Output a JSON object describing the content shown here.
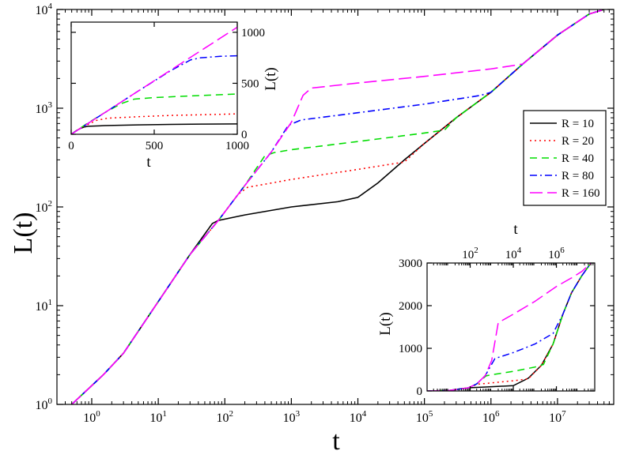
{
  "chart_data": [
    {
      "id": "main",
      "type": "line",
      "scale": {
        "x": "log",
        "y": "log"
      },
      "xlim": [
        0.3,
        70000000
      ],
      "ylim": [
        1,
        10000
      ],
      "xlabel": "t",
      "ylabel": "L(t)",
      "x_ticks": [
        1,
        10,
        100,
        1000,
        10000,
        100000,
        1000000,
        10000000
      ],
      "x_tick_labels": [
        {
          "base": "10",
          "exp": "0"
        },
        {
          "base": "10",
          "exp": "1"
        },
        {
          "base": "10",
          "exp": "2"
        },
        {
          "base": "10",
          "exp": "3"
        },
        {
          "base": "10",
          "exp": "4"
        },
        {
          "base": "10",
          "exp": "5"
        },
        {
          "base": "10",
          "exp": "6"
        },
        {
          "base": "10",
          "exp": "7"
        }
      ],
      "y_ticks": [
        1,
        10,
        100,
        1000,
        10000
      ],
      "y_tick_labels": [
        {
          "base": "10",
          "exp": "0"
        },
        {
          "base": "10",
          "exp": "1"
        },
        {
          "base": "10",
          "exp": "2"
        },
        {
          "base": "10",
          "exp": "3"
        },
        {
          "base": "10",
          "exp": "4"
        }
      ],
      "legend_position": "right",
      "series": [
        {
          "name": "R = 10",
          "color": "#000000",
          "dash": "solid",
          "points": [
            [
              0.5,
              1
            ],
            [
              1.5,
              2
            ],
            [
              3,
              3.3
            ],
            [
              10,
              11
            ],
            [
              30,
              33
            ],
            [
              65,
              68
            ],
            [
              80,
              73
            ],
            [
              200,
              83
            ],
            [
              1000,
              100
            ],
            [
              5000,
              113
            ],
            [
              10000,
              125
            ],
            [
              20000,
              175
            ],
            [
              50000,
              300
            ],
            [
              100000,
              440
            ],
            [
              300000,
              800
            ],
            [
              1000000,
              1450
            ],
            [
              3000000,
              2800
            ],
            [
              10000000,
              5500
            ],
            [
              30000000,
              9000
            ],
            [
              50000000,
              10000
            ]
          ]
        },
        {
          "name": "R = 20",
          "color": "#ff0000",
          "dash": "dotted",
          "points": [
            [
              0.5,
              1
            ],
            [
              1.5,
              2
            ],
            [
              3,
              3.3
            ],
            [
              10,
              11
            ],
            [
              30,
              33
            ],
            [
              80,
              73
            ],
            [
              160,
              135
            ],
            [
              220,
              158
            ],
            [
              1000,
              190
            ],
            [
              10000,
              240
            ],
            [
              50000,
              285
            ],
            [
              100000,
              440
            ],
            [
              300000,
              800
            ],
            [
              1000000,
              1450
            ],
            [
              3000000,
              2800
            ],
            [
              10000000,
              5500
            ],
            [
              30000000,
              9000
            ],
            [
              50000000,
              10000
            ]
          ]
        },
        {
          "name": "R = 40",
          "color": "#00dd00",
          "dash": "dashed",
          "points": [
            [
              0.5,
              1
            ],
            [
              1.5,
              2
            ],
            [
              3,
              3.3
            ],
            [
              10,
              11
            ],
            [
              30,
              33
            ],
            [
              80,
              73
            ],
            [
              200,
              165
            ],
            [
              400,
              330
            ],
            [
              550,
              355
            ],
            [
              1000,
              380
            ],
            [
              10000,
              460
            ],
            [
              100000,
              560
            ],
            [
              200000,
              600
            ],
            [
              300000,
              800
            ],
            [
              1000000,
              1450
            ],
            [
              3000000,
              2800
            ],
            [
              10000000,
              5500
            ],
            [
              30000000,
              9000
            ],
            [
              50000000,
              10000
            ]
          ]
        },
        {
          "name": "R = 80",
          "color": "#0000ff",
          "dash": "dashdot",
          "points": [
            [
              0.5,
              1
            ],
            [
              1.5,
              2
            ],
            [
              3,
              3.3
            ],
            [
              10,
              11
            ],
            [
              30,
              33
            ],
            [
              80,
              73
            ],
            [
              200,
              165
            ],
            [
              500,
              360
            ],
            [
              900,
              670
            ],
            [
              1400,
              760
            ],
            [
              10000,
              900
            ],
            [
              100000,
              1100
            ],
            [
              500000,
              1300
            ],
            [
              700000,
              1350
            ],
            [
              1000000,
              1450
            ],
            [
              3000000,
              2800
            ],
            [
              10000000,
              5500
            ],
            [
              30000000,
              9000
            ],
            [
              50000000,
              10000
            ]
          ]
        },
        {
          "name": "R = 160",
          "color": "#ff00ff",
          "dash": "longdash",
          "points": [
            [
              0.5,
              1
            ],
            [
              1.5,
              2
            ],
            [
              3,
              3.3
            ],
            [
              10,
              11
            ],
            [
              30,
              33
            ],
            [
              80,
              73
            ],
            [
              200,
              165
            ],
            [
              500,
              360
            ],
            [
              1000,
              720
            ],
            [
              1500,
              1350
            ],
            [
              2000,
              1600
            ],
            [
              10000,
              1800
            ],
            [
              100000,
              2100
            ],
            [
              1000000,
              2500
            ],
            [
              3000000,
              2800
            ],
            [
              10000000,
              5500
            ],
            [
              30000000,
              9000
            ],
            [
              50000000,
              10000
            ]
          ]
        }
      ]
    },
    {
      "id": "inset_top_left",
      "type": "line",
      "scale": {
        "x": "linear",
        "y": "linear"
      },
      "xlim": [
        0,
        1000
      ],
      "ylim": [
        0,
        1100
      ],
      "xlabel": "t",
      "ylabel": "L(t)",
      "x_ticks": [
        0,
        500,
        1000
      ],
      "y_ticks": [
        0,
        500,
        1000
      ],
      "y_axis_side": "right",
      "series": [
        {
          "name": "R = 10",
          "color": "#000000",
          "dash": "solid",
          "points": [
            [
              0,
              0
            ],
            [
              30,
              35
            ],
            [
              60,
              60
            ],
            [
              80,
              72
            ],
            [
              100,
              78
            ],
            [
              200,
              85
            ],
            [
              400,
              92
            ],
            [
              600,
              97
            ],
            [
              800,
              100
            ],
            [
              1000,
              102
            ]
          ]
        },
        {
          "name": "R = 20",
          "color": "#ff0000",
          "dash": "dotted",
          "points": [
            [
              0,
              0
            ],
            [
              60,
              65
            ],
            [
              100,
              95
            ],
            [
              150,
              135
            ],
            [
              220,
              158
            ],
            [
              400,
              172
            ],
            [
              600,
              185
            ],
            [
              800,
              192
            ],
            [
              1000,
              200
            ]
          ]
        },
        {
          "name": "R = 40",
          "color": "#00dd00",
          "dash": "dashed",
          "points": [
            [
              0,
              0
            ],
            [
              100,
              110
            ],
            [
              200,
              210
            ],
            [
              300,
              300
            ],
            [
              380,
              345
            ],
            [
              500,
              360
            ],
            [
              700,
              375
            ],
            [
              1000,
              395
            ]
          ]
        },
        {
          "name": "R = 80",
          "color": "#0000ff",
          "dash": "dashdot",
          "points": [
            [
              0,
              0
            ],
            [
              200,
              210
            ],
            [
              400,
              420
            ],
            [
              600,
              625
            ],
            [
              720,
              730
            ],
            [
              780,
              750
            ],
            [
              900,
              765
            ],
            [
              1000,
              770
            ]
          ]
        },
        {
          "name": "R = 160",
          "color": "#ff00ff",
          "dash": "longdash",
          "points": [
            [
              0,
              0
            ],
            [
              200,
              210
            ],
            [
              400,
              420
            ],
            [
              600,
              630
            ],
            [
              800,
              840
            ],
            [
              1000,
              1050
            ]
          ]
        }
      ]
    },
    {
      "id": "inset_bottom_right",
      "type": "line",
      "scale": {
        "x": "log",
        "y": "linear"
      },
      "xlim": [
        1,
        60000000
      ],
      "ylim": [
        0,
        3000
      ],
      "xlabel": "t",
      "ylabel": "L(t)",
      "x_ticks": [
        100,
        10000,
        1000000
      ],
      "x_tick_labels": [
        {
          "base": "10",
          "exp": "2"
        },
        {
          "base": "10",
          "exp": "4"
        },
        {
          "base": "10",
          "exp": "6"
        }
      ],
      "x_axis_side": "top",
      "y_ticks": [
        0,
        1000,
        2000,
        3000
      ],
      "series": [
        {
          "name": "R = 10",
          "color": "#000000",
          "dash": "solid",
          "points": [
            [
              1,
              1
            ],
            [
              10,
              11
            ],
            [
              80,
              73
            ],
            [
              1000,
              100
            ],
            [
              10000,
              125
            ],
            [
              50000,
              300
            ],
            [
              200000,
              600
            ],
            [
              700000,
              1100
            ],
            [
              2000000,
              1800
            ],
            [
              5000000,
              2300
            ],
            [
              15000000,
              2700
            ],
            [
              40000000,
              3000
            ]
          ]
        },
        {
          "name": "R = 20",
          "color": "#ff0000",
          "dash": "dotted",
          "points": [
            [
              1,
              1
            ],
            [
              10,
              11
            ],
            [
              80,
              73
            ],
            [
              220,
              158
            ],
            [
              1000,
              190
            ],
            [
              10000,
              240
            ],
            [
              50000,
              285
            ],
            [
              200000,
              600
            ],
            [
              700000,
              1100
            ],
            [
              2000000,
              1800
            ],
            [
              5000000,
              2300
            ],
            [
              15000000,
              2700
            ],
            [
              40000000,
              3000
            ]
          ]
        },
        {
          "name": "R = 40",
          "color": "#00dd00",
          "dash": "dashed",
          "points": [
            [
              1,
              1
            ],
            [
              10,
              11
            ],
            [
              80,
              73
            ],
            [
              200,
              165
            ],
            [
              550,
              355
            ],
            [
              1000,
              380
            ],
            [
              10000,
              460
            ],
            [
              100000,
              560
            ],
            [
              250000,
              620
            ],
            [
              700000,
              1100
            ],
            [
              2000000,
              1800
            ],
            [
              5000000,
              2300
            ],
            [
              15000000,
              2700
            ],
            [
              40000000,
              3000
            ]
          ]
        },
        {
          "name": "R = 80",
          "color": "#0000ff",
          "dash": "dashdot",
          "points": [
            [
              1,
              1
            ],
            [
              10,
              11
            ],
            [
              80,
              73
            ],
            [
              200,
              165
            ],
            [
              500,
              360
            ],
            [
              1400,
              760
            ],
            [
              10000,
              900
            ],
            [
              100000,
              1100
            ],
            [
              700000,
              1350
            ],
            [
              2000000,
              1800
            ],
            [
              5000000,
              2300
            ],
            [
              15000000,
              2700
            ],
            [
              40000000,
              3000
            ]
          ]
        },
        {
          "name": "R = 160",
          "color": "#ff00ff",
          "dash": "longdash",
          "points": [
            [
              1,
              1
            ],
            [
              10,
              11
            ],
            [
              80,
              73
            ],
            [
              200,
              165
            ],
            [
              500,
              360
            ],
            [
              1000,
              720
            ],
            [
              2000,
              1600
            ],
            [
              10000,
              1800
            ],
            [
              100000,
              2100
            ],
            [
              1000000,
              2450
            ],
            [
              5000000,
              2650
            ],
            [
              15000000,
              2800
            ],
            [
              40000000,
              3000
            ]
          ]
        }
      ]
    }
  ]
}
